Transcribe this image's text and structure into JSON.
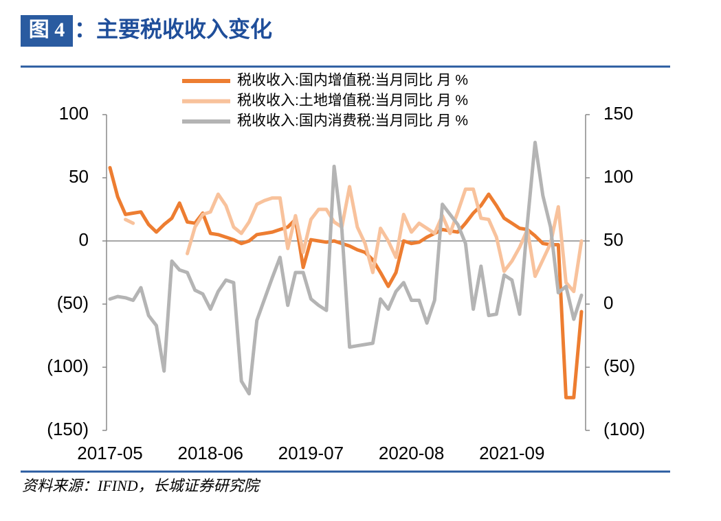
{
  "chart_data": {
    "type": "line",
    "figure_label": "图 4",
    "title": "：主要税收收入变化",
    "source": "资料来源：IFIND，长城证券研究院",
    "categories": [
      "2017-05",
      null,
      null,
      null,
      null,
      null,
      null,
      null,
      null,
      null,
      null,
      null,
      null,
      "2018-06",
      null,
      null,
      null,
      null,
      null,
      null,
      null,
      null,
      null,
      null,
      null,
      null,
      "2019-07",
      null,
      null,
      null,
      null,
      null,
      null,
      null,
      null,
      null,
      null,
      null,
      null,
      "2020-08",
      null,
      null,
      null,
      null,
      null,
      null,
      null,
      null,
      null,
      null,
      null,
      null,
      "2021-09",
      null,
      null,
      null,
      null,
      null,
      null,
      null,
      null,
      null
    ],
    "series": [
      {
        "name": "税收收入:国内增值税:当月同比 月 %",
        "color": "#ed7d31",
        "values": [
          58,
          35,
          21,
          22,
          23,
          13,
          7,
          13,
          18,
          30,
          15,
          14,
          22,
          6,
          5,
          3,
          1,
          -2,
          0,
          5,
          6,
          7,
          9,
          11,
          17,
          -21,
          1,
          0,
          -1,
          0,
          -2,
          -4,
          -7,
          -9,
          -15,
          -25,
          -36,
          -25,
          0,
          -2,
          -1,
          3,
          6,
          9,
          8,
          7,
          14,
          22,
          28,
          37,
          28,
          18,
          14,
          10,
          9,
          4,
          -2,
          -3,
          -3,
          -124,
          -124,
          -56
        ]
      },
      {
        "name": "税收收入:土地增值税:当月同比 月 %",
        "color": "#f8c29c",
        "axis": "y2",
        "values": [
          null,
          null,
          67,
          64,
          null,
          null,
          null,
          null,
          null,
          null,
          40,
          61,
          71,
          73,
          87,
          78,
          61,
          56,
          65,
          79,
          82,
          84,
          84,
          44,
          70,
          41,
          67,
          75,
          75,
          65,
          61,
          93,
          61,
          48,
          25,
          60,
          50,
          37,
          71,
          57,
          64,
          60,
          56,
          70,
          56,
          73,
          91,
          91,
          68,
          67,
          53,
          26,
          34,
          45,
          59,
          22,
          35,
          48,
          77,
          17,
          10,
          50
        ]
      },
      {
        "name": "税收收入:国内消费税:当月同比 月 %",
        "color": "#b4b4b4",
        "axis": "y2",
        "values": [
          4,
          6,
          5,
          3,
          13,
          -9,
          -17,
          -53,
          34,
          27,
          25,
          11,
          8,
          -4,
          10,
          19,
          17,
          -61,
          -71,
          -13,
          4,
          21,
          37,
          -1,
          25,
          25,
          4,
          -1,
          -5,
          109,
          59,
          -34,
          -33,
          -32,
          -31,
          4,
          -4,
          10,
          17,
          3,
          3,
          -15,
          3,
          79,
          71,
          63,
          48,
          -4,
          30,
          -9,
          -8,
          23,
          19,
          -8,
          64,
          128,
          86,
          61,
          9,
          14,
          -12,
          7
        ]
      }
    ],
    "ylim": [
      -150,
      100
    ],
    "yticks": [
      100,
      50,
      0,
      {
        "value": -50,
        "label": "(50)"
      },
      {
        "value": -100,
        "label": "(100)"
      },
      {
        "value": -150,
        "label": "(150)"
      }
    ],
    "y2lim": [
      -100,
      150
    ],
    "y2ticks": [
      150,
      100,
      50,
      0,
      {
        "value": -50,
        "label": "(50)"
      },
      {
        "value": -100,
        "label": "(100)"
      }
    ],
    "legend": "upper center",
    "negative_tick_color": "#ff0000"
  }
}
